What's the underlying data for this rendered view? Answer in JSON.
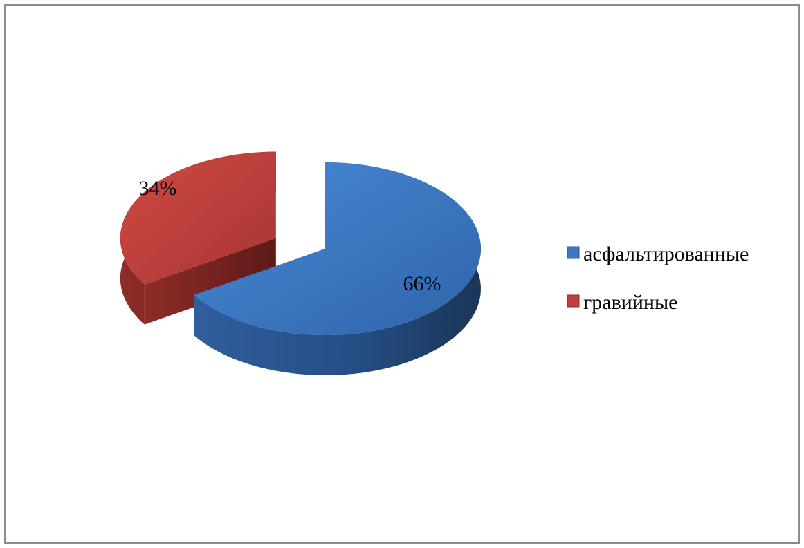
{
  "chart_data": {
    "type": "pie",
    "style": "3d-exploded",
    "categories": [
      "асфальтированные",
      "гравийные"
    ],
    "values": [
      66,
      34
    ],
    "data_labels": [
      "66%",
      "34%"
    ],
    "colors": [
      "#3b78c4",
      "#c0403c"
    ],
    "legend": {
      "placement": "right",
      "entries": [
        {
          "label": "асфальтированные",
          "color": "#3b78c4"
        },
        {
          "label": "гравийные",
          "color": "#c0403c"
        }
      ]
    }
  }
}
